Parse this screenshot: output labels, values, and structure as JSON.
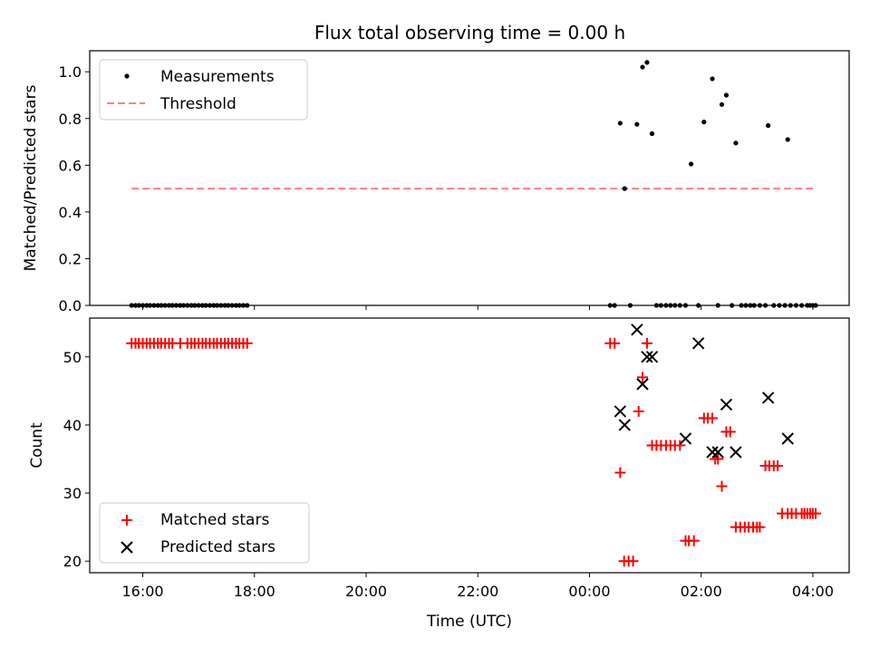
{
  "chart_data": [
    {
      "type": "scatter",
      "title": "Flux total observing time = 0.00 h",
      "xlabel": "",
      "ylabel": "Matched/Predicted stars",
      "ylim": [
        0,
        1.09
      ],
      "yticks": [
        0.0,
        0.2,
        0.4,
        0.6,
        0.8,
        1.0
      ],
      "ytick_labels": [
        "0.0",
        "0.2",
        "0.4",
        "0.6",
        "0.8",
        "1.0"
      ],
      "xticks_hours": [
        16,
        18,
        20,
        22,
        24,
        26,
        28
      ],
      "xlim_hours": [
        15.05,
        28.65
      ],
      "legend_position": "upper-left",
      "threshold": {
        "name": "Threshold",
        "y": 0.5,
        "x": [
          15.8,
          28.0
        ],
        "color": "#ff7f7f"
      },
      "series": [
        {
          "name": "Measurements",
          "color": "#000000",
          "x": [
            15.8,
            15.87,
            15.93,
            16.0,
            16.07,
            16.13,
            16.2,
            16.27,
            16.33,
            16.4,
            16.47,
            16.53,
            16.6,
            16.67,
            16.73,
            16.8,
            16.87,
            16.93,
            17.0,
            17.07,
            17.13,
            17.2,
            17.27,
            17.33,
            17.4,
            17.47,
            17.53,
            17.6,
            17.67,
            17.73,
            17.8,
            17.87,
            24.37,
            24.45,
            24.55,
            24.63,
            24.73,
            24.85,
            24.95,
            25.03,
            25.12,
            25.2,
            25.28,
            25.37,
            25.45,
            25.53,
            25.62,
            25.72,
            25.82,
            25.95,
            26.05,
            26.2,
            26.3,
            26.37,
            26.45,
            26.55,
            26.62,
            26.72,
            26.8,
            26.88,
            26.95,
            27.05,
            27.15,
            27.2,
            27.3,
            27.4,
            27.5,
            27.55,
            27.6,
            27.7,
            27.8,
            27.9,
            27.95,
            28.0,
            28.05
          ],
          "y": [
            0,
            0,
            0,
            0,
            0,
            0,
            0,
            0,
            0,
            0,
            0,
            0,
            0,
            0,
            0,
            0,
            0,
            0,
            0,
            0,
            0,
            0,
            0,
            0,
            0,
            0,
            0,
            0,
            0,
            0,
            0,
            0,
            0,
            0,
            0.78,
            0.5,
            0,
            0.775,
            1.02,
            1.04,
            0.735,
            0,
            0,
            0,
            0,
            0,
            0,
            0,
            0.605,
            0,
            0.785,
            0.97,
            0,
            0.86,
            0.9,
            0,
            0.695,
            0,
            0,
            0,
            0,
            0,
            0,
            0.77,
            0,
            0,
            0,
            0.71,
            0,
            0,
            0,
            0,
            0,
            0,
            0
          ]
        }
      ]
    },
    {
      "type": "scatter",
      "title": "",
      "xlabel": "Time (UTC)",
      "ylabel": "Count",
      "ylim": [
        18.3,
        55.7
      ],
      "yticks": [
        20,
        30,
        40,
        50
      ],
      "ytick_labels": [
        "20",
        "30",
        "40",
        "50"
      ],
      "xticks_hours": [
        16,
        18,
        20,
        22,
        24,
        26,
        28
      ],
      "xtick_labels": [
        "16:00",
        "18:00",
        "20:00",
        "22:00",
        "00:00",
        "02:00",
        "04:00"
      ],
      "xlim_hours": [
        15.05,
        28.65
      ],
      "legend_position": "lower-left",
      "series": [
        {
          "name": "Matched stars",
          "marker": "plus",
          "color": "#ff0000",
          "x": [
            15.8,
            15.87,
            15.93,
            16.0,
            16.07,
            16.13,
            16.2,
            16.27,
            16.33,
            16.4,
            16.47,
            16.53,
            16.67,
            16.8,
            16.87,
            16.93,
            17.0,
            17.07,
            17.13,
            17.2,
            17.27,
            17.33,
            17.4,
            17.47,
            17.53,
            17.6,
            17.67,
            17.73,
            17.8,
            17.87,
            24.37,
            24.45,
            24.55,
            24.62,
            24.7,
            24.78,
            24.88,
            24.95,
            25.03,
            25.12,
            25.2,
            25.28,
            25.37,
            25.45,
            25.53,
            25.62,
            25.72,
            25.78,
            25.87,
            26.05,
            26.12,
            26.2,
            26.25,
            26.3,
            26.37,
            26.45,
            26.52,
            26.62,
            26.7,
            26.78,
            26.85,
            26.93,
            27.0,
            27.05,
            27.15,
            27.22,
            27.3,
            27.37,
            27.45,
            27.55,
            27.62,
            27.7,
            27.8,
            27.85,
            27.9,
            27.95,
            28.0,
            28.05
          ],
          "y": [
            52,
            52,
            52,
            52,
            52,
            52,
            52,
            52,
            52,
            52,
            52,
            52,
            52,
            52,
            52,
            52,
            52,
            52,
            52,
            52,
            52,
            52,
            52,
            52,
            52,
            52,
            52,
            52,
            52,
            52,
            52,
            52,
            33,
            20,
            20,
            20,
            42,
            47,
            52,
            37,
            37,
            37,
            37,
            37,
            37,
            37,
            23,
            23,
            23,
            41,
            41,
            41,
            35,
            35,
            31,
            39,
            39,
            25,
            25,
            25,
            25,
            25,
            25,
            25,
            34,
            34,
            34,
            34,
            27,
            27,
            27,
            27,
            27,
            27,
            27,
            27,
            27,
            27
          ]
        },
        {
          "name": "Predicted stars",
          "marker": "x",
          "color": "#000000",
          "x": [
            24.55,
            24.63,
            24.85,
            24.95,
            25.03,
            25.12,
            25.72,
            25.95,
            26.2,
            26.3,
            26.45,
            26.62,
            27.2,
            27.55
          ],
          "y": [
            42,
            40,
            54,
            46,
            50,
            50,
            38,
            52,
            36,
            36,
            43,
            36,
            44,
            38
          ]
        }
      ]
    }
  ]
}
